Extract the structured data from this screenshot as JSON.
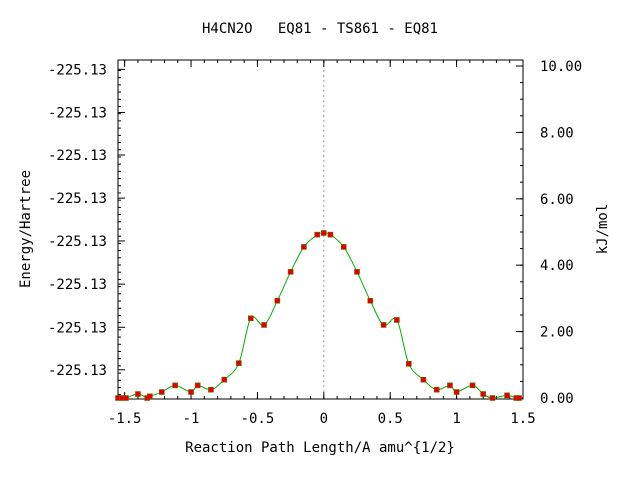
{
  "colors": {
    "curve": "#00b000",
    "marker": "#e00000",
    "marker_stroke": "#806000",
    "axis": "#000000",
    "ts_line": "#999999",
    "background": "#ffffff"
  },
  "chart_data": {
    "type": "line",
    "title": "H4CN2O   EQ81 - TS861 - EQ81",
    "xlabel": "Reaction Path Length/A amu^{1/2}",
    "ylabel": "Energy/Hartree",
    "y2label": "kJ/mol",
    "xlim": [
      -1.55,
      1.5
    ],
    "y2lim": [
      0,
      10
    ],
    "x_ticks": [
      -1.5,
      -1,
      -0.5,
      0,
      0.5,
      1,
      1.5
    ],
    "x_tick_labels": [
      "-1.5",
      "-1",
      "-0.5",
      "0",
      "0.5",
      "1",
      "1.5"
    ],
    "y2_ticks": [
      0,
      2,
      4,
      6,
      8,
      10
    ],
    "y2_tick_labels": [
      "0.00",
      "2.00",
      "4.00",
      "6.00",
      "8.00",
      "10.00"
    ],
    "y_tick_positions_kj": [
      0.85,
      2.13,
      3.43,
      4.73,
      6.02,
      7.32,
      8.6,
      9.9
    ],
    "y_tick_labels": [
      "-225.13",
      "-225.13",
      "-225.13",
      "-225.13",
      "-225.13",
      "-225.13",
      "-225.13",
      "-225.13"
    ],
    "ts_x": 0,
    "grid": false,
    "series": [
      {
        "x": [
          -1.55,
          -1.52,
          -1.49,
          -1.4,
          -1.33,
          -1.31,
          -1.22,
          -1.12,
          -1.0,
          -0.95,
          -0.85,
          -0.75,
          -0.64,
          -0.55,
          -0.45,
          -0.35,
          -0.25,
          -0.15,
          -0.05,
          0.0,
          0.05,
          0.15,
          0.25,
          0.35,
          0.45,
          0.55,
          0.64,
          0.75,
          0.85,
          0.95,
          1.0,
          1.12,
          1.2,
          1.27,
          1.38,
          1.45,
          1.47
        ],
        "y": [
          0.0,
          0.0,
          0.0,
          0.12,
          0.0,
          0.05,
          0.18,
          0.38,
          0.18,
          0.38,
          0.25,
          0.55,
          1.05,
          2.4,
          2.2,
          2.93,
          3.8,
          4.55,
          4.92,
          4.97,
          4.92,
          4.55,
          3.8,
          2.93,
          2.2,
          2.35,
          1.03,
          0.55,
          0.25,
          0.38,
          0.18,
          0.38,
          0.12,
          0.0,
          0.08,
          0.0,
          0.0
        ]
      }
    ]
  }
}
